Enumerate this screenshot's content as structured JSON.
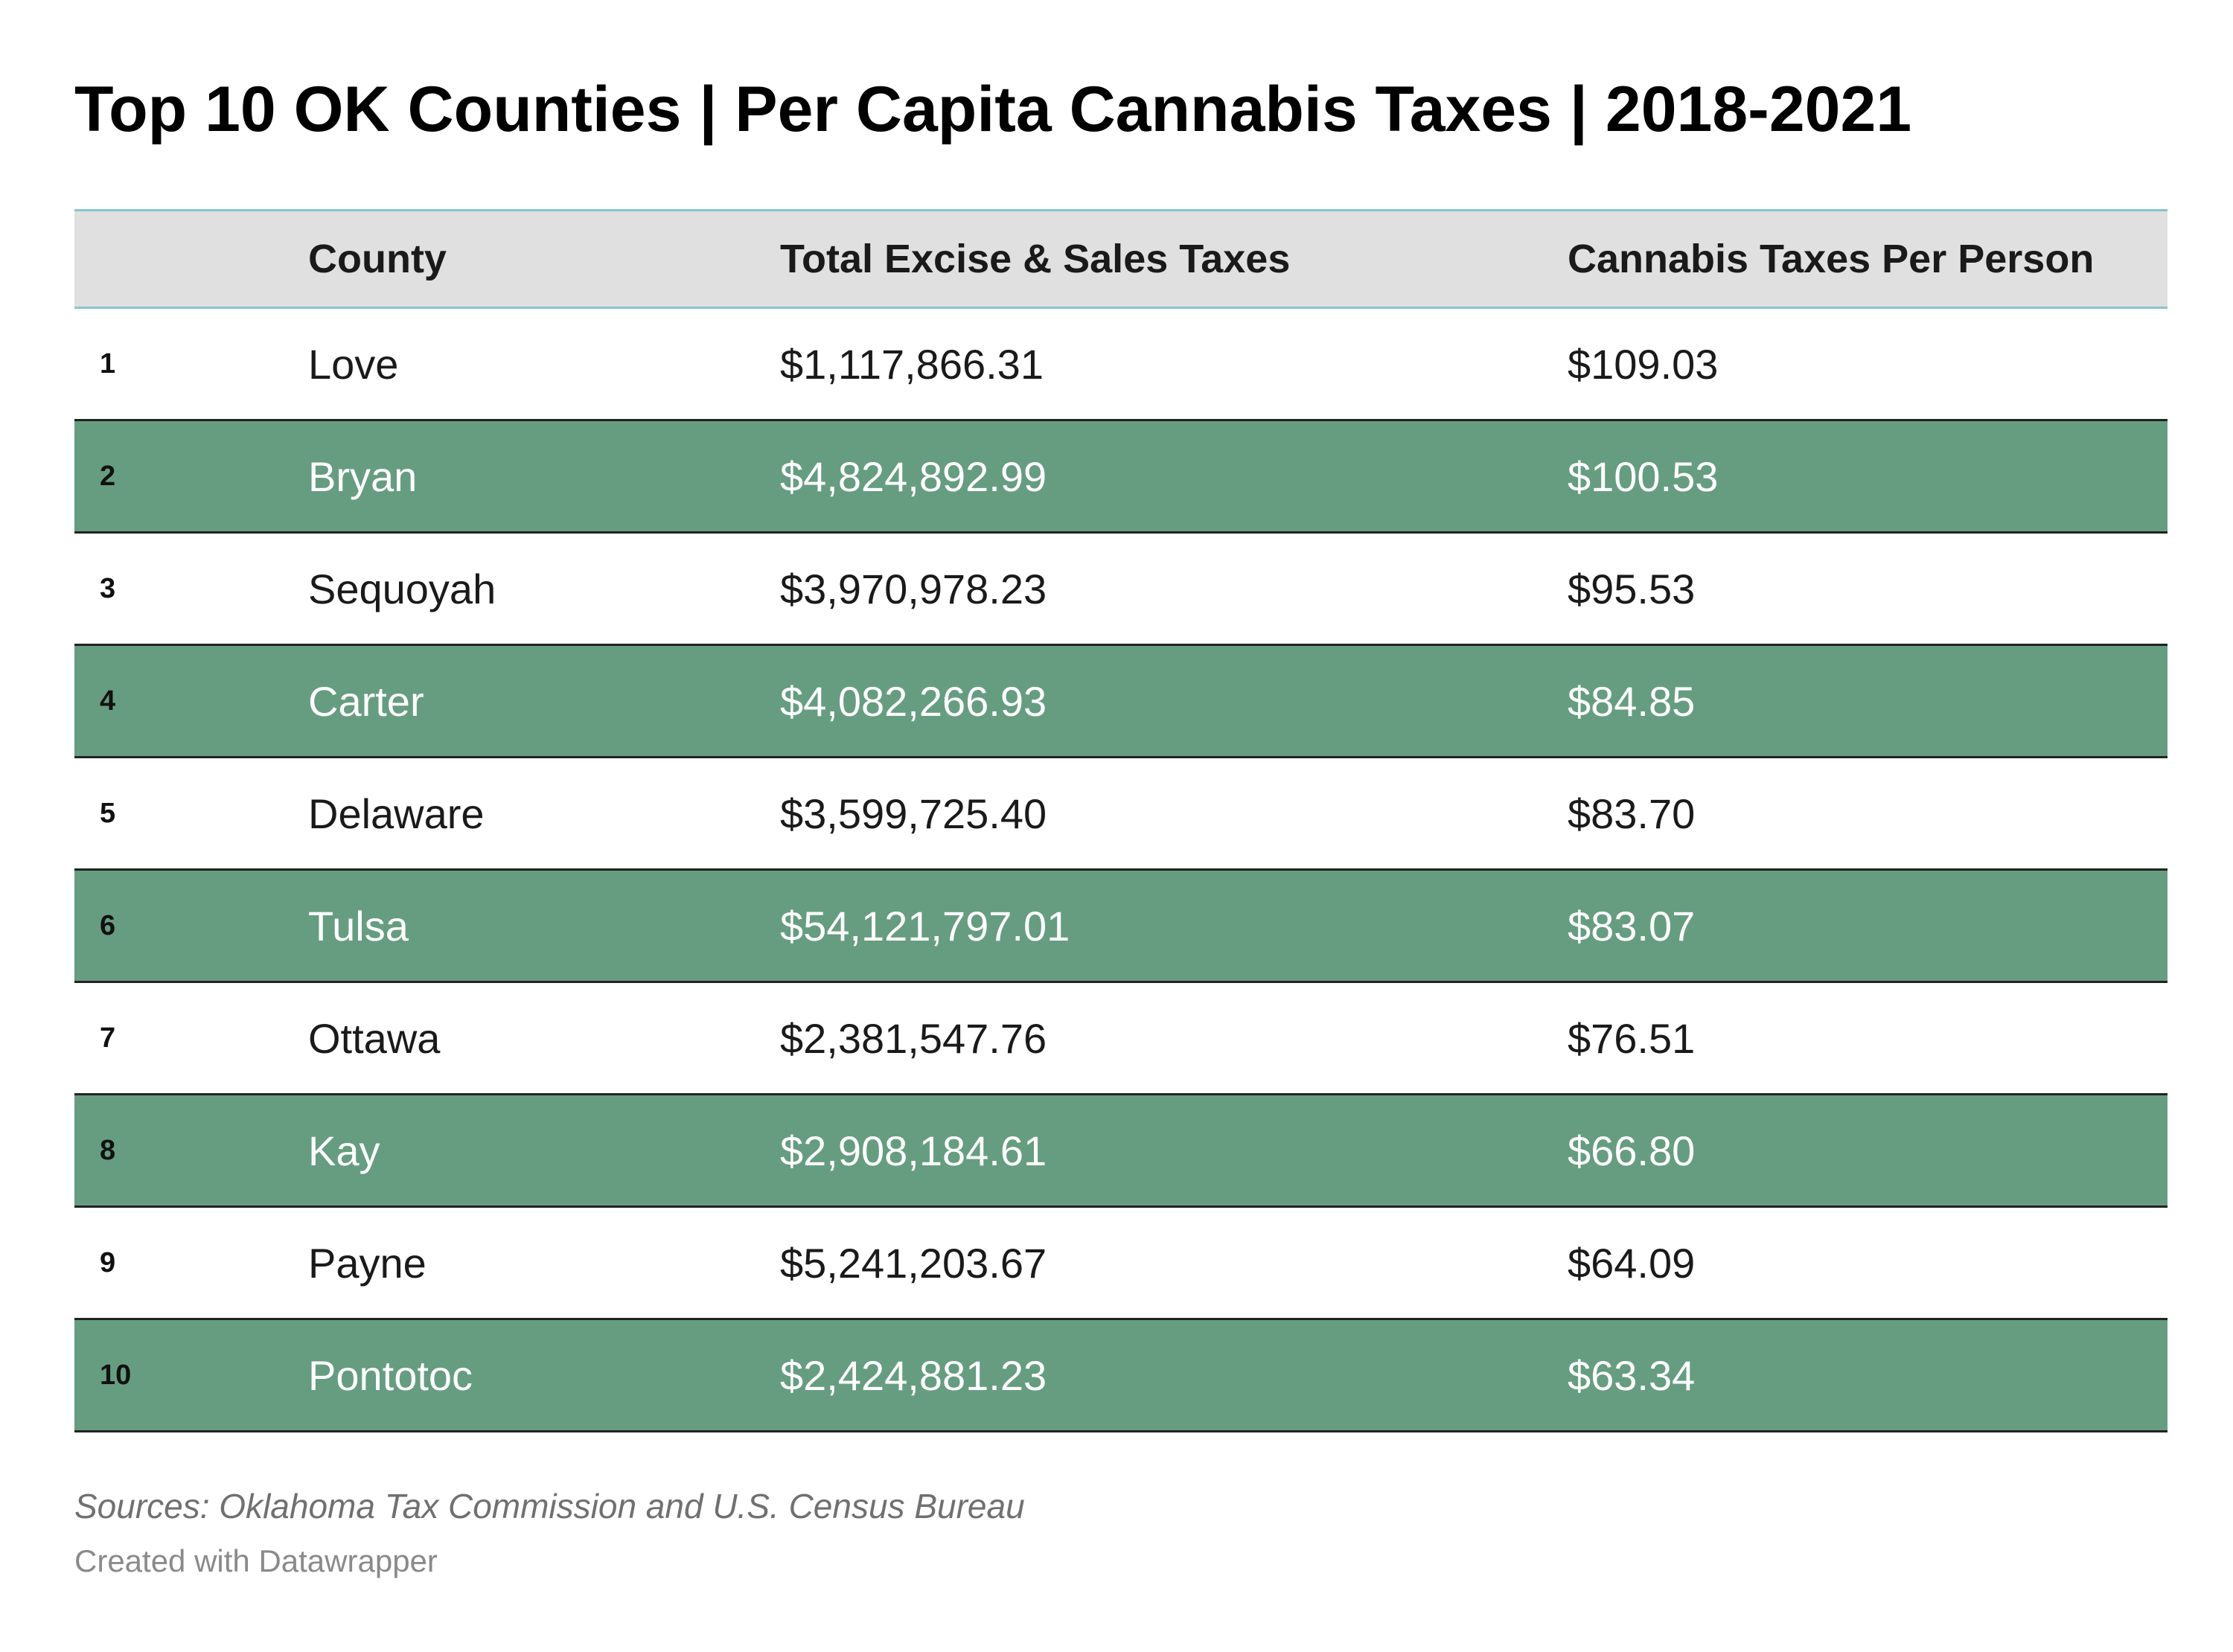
{
  "chart_data": {
    "type": "table",
    "title": "Top 10 OK Counties | Per Capita Cannabis Taxes | 2018-2021",
    "columns": [
      "",
      "County",
      "Total Excise & Sales Taxes",
      "Cannabis Taxes Per Person"
    ],
    "rows": [
      {
        "rank": "1",
        "county": "Love",
        "total": "$1,117,866.31",
        "per_person": "$109.03"
      },
      {
        "rank": "2",
        "county": "Bryan",
        "total": "$4,824,892.99",
        "per_person": "$100.53"
      },
      {
        "rank": "3",
        "county": "Sequoyah",
        "total": "$3,970,978.23",
        "per_person": "$95.53"
      },
      {
        "rank": "4",
        "county": "Carter",
        "total": "$4,082,266.93",
        "per_person": "$84.85"
      },
      {
        "rank": "5",
        "county": "Delaware",
        "total": "$3,599,725.40",
        "per_person": "$83.70"
      },
      {
        "rank": "6",
        "county": "Tulsa",
        "total": "$54,121,797.01",
        "per_person": "$83.07"
      },
      {
        "rank": "7",
        "county": "Ottawa",
        "total": "$2,381,547.76",
        "per_person": "$76.51"
      },
      {
        "rank": "8",
        "county": "Kay",
        "total": "$2,908,184.61",
        "per_person": "$66.80"
      },
      {
        "rank": "9",
        "county": "Payne",
        "total": "$5,241,203.67",
        "per_person": "$64.09"
      },
      {
        "rank": "10",
        "county": "Pontotoc",
        "total": "$2,424,881.23",
        "per_person": "$63.34"
      }
    ],
    "source": "Sources: Oklahoma Tax Commission and U.S. Census Bureau",
    "credit": "Created with Datawrapper",
    "colors": {
      "shaded_row": "#669d80",
      "header_background": "#e0e0e0",
      "header_border": "#86c6cf"
    }
  }
}
